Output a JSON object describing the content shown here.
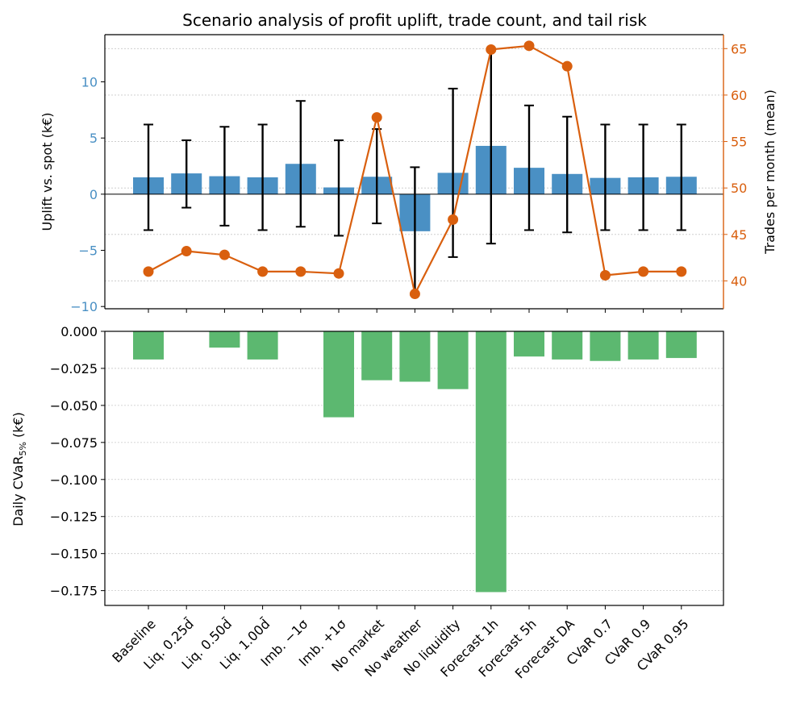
{
  "chart_data": {
    "type": "bar",
    "title": "Scenario analysis of profit uplift, trade count, and tail risk",
    "categories": [
      "Baseline",
      "Liq. 0.25d̄",
      "Liq. 0.50d̄",
      "Liq. 1.00d̄",
      "Imb. −1σ",
      "Imb. +1σ",
      "No market",
      "No weather",
      "No liquidity",
      "Forecast 1h",
      "Forecast 5h",
      "Forecast DA",
      "CVaR 0.7",
      "CVaR 0.9",
      "CVaR 0.95"
    ],
    "top_panel": {
      "ylabel_left": "Uplift vs. spot (k€)",
      "ylabel_right": "Trades per month (mean)",
      "ylim_left": [
        -10.2,
        14.2
      ],
      "ylim_right": [
        37,
        66.5
      ],
      "yticks_left": [
        -10,
        -5,
        0,
        5,
        10
      ],
      "yticks_right": [
        40,
        45,
        50,
        55,
        60,
        65
      ],
      "uplift": {
        "name": "Uplift",
        "color": "#4a90c4",
        "values": [
          1.5,
          1.85,
          1.6,
          1.5,
          2.7,
          0.6,
          1.55,
          -3.3,
          1.9,
          4.3,
          2.35,
          1.8,
          1.45,
          1.5,
          1.55
        ],
        "error_low": [
          -3.2,
          -1.2,
          -2.8,
          -3.2,
          -2.9,
          -3.7,
          -2.6,
          -9.0,
          -5.6,
          -4.4,
          -3.2,
          -3.4,
          -3.2,
          -3.2,
          -3.2
        ],
        "error_high": [
          6.2,
          4.8,
          6.0,
          6.2,
          8.3,
          4.8,
          5.8,
          2.4,
          9.4,
          12.8,
          7.9,
          6.9,
          6.2,
          6.2,
          6.2
        ]
      },
      "trades": {
        "name": "Trades per month (mean)",
        "color": "#d95f0e",
        "values": [
          41.0,
          43.2,
          42.8,
          41.0,
          41.0,
          40.8,
          57.6,
          38.6,
          46.6,
          64.9,
          65.3,
          63.1,
          40.6,
          41.0,
          41.0
        ]
      }
    },
    "bottom_panel": {
      "ylabel": "Daily CVaR",
      "ylabel_sub": "5%",
      "ylabel_unit": " (k€)",
      "ylim": [
        -0.185,
        0.0
      ],
      "yticks": [
        "0.000",
        "−0.025",
        "−0.050",
        "−0.075",
        "−0.100",
        "−0.125",
        "−0.150",
        "−0.175"
      ],
      "ytick_values": [
        0.0,
        -0.025,
        -0.05,
        -0.075,
        -0.1,
        -0.125,
        -0.15,
        -0.175
      ],
      "color": "#5cb870",
      "values": [
        -0.019,
        0.0,
        -0.011,
        -0.019,
        0.0,
        -0.058,
        -0.033,
        -0.034,
        -0.039,
        -0.176,
        -0.017,
        -0.019,
        -0.02,
        -0.019,
        -0.018
      ]
    }
  }
}
